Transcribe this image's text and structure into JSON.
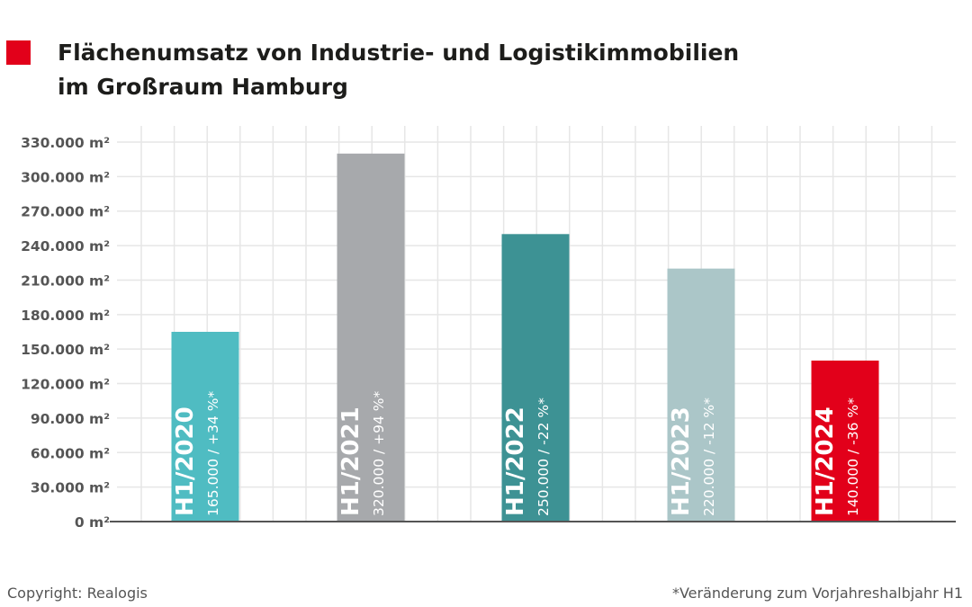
{
  "header": {
    "title_line1": "Flächenumsatz von Industrie- und Logistikimmobilien",
    "title_line2": "im Großraum Hamburg",
    "marker_color": "#e2001a"
  },
  "footer": {
    "copyright": "Copyright: Realogis",
    "note": "*Veränderung zum Vorjahreshalbjahr H1"
  },
  "chart_data": {
    "type": "bar",
    "title": "Flächenumsatz von Industrie- und Logistikimmobilien im Großraum Hamburg",
    "ylabel": "",
    "xlabel": "",
    "ylim": [
      0,
      330000
    ],
    "grid": true,
    "yticks": [
      {
        "value": 330000,
        "label": "330.000 m²"
      },
      {
        "value": 300000,
        "label": "300.000 m²"
      },
      {
        "value": 270000,
        "label": "270.000 m²"
      },
      {
        "value": 240000,
        "label": "240.000 m²"
      },
      {
        "value": 210000,
        "label": "210.000 m²"
      },
      {
        "value": 180000,
        "label": "180.000 m²"
      },
      {
        "value": 150000,
        "label": "150.000 m²"
      },
      {
        "value": 120000,
        "label": "120.000 m²"
      },
      {
        "value": 90000,
        "label": "90.000 m²"
      },
      {
        "value": 60000,
        "label": "60.000 m²"
      },
      {
        "value": 30000,
        "label": "30.000 m²"
      },
      {
        "value": 0,
        "label": "0 m²"
      }
    ],
    "categories": [
      "H1/2020",
      "H1/2021",
      "H1/2022",
      "H1/2023",
      "H1/2024"
    ],
    "bars": [
      {
        "category": "H1/2020",
        "value": 165000,
        "color": "#4fbcc2",
        "label": "H1/2020",
        "sublabel": "165.000 / +34 %*"
      },
      {
        "category": "H1/2021",
        "value": 320000,
        "color": "#a7a9ac",
        "label": "H1/2021",
        "sublabel": "320.000 / +94 %*"
      },
      {
        "category": "H1/2022",
        "value": 250000,
        "color": "#3d9294",
        "label": "H1/2022",
        "sublabel": "250.000 / -22 %*"
      },
      {
        "category": "H1/2023",
        "value": 220000,
        "color": "#abc6c8",
        "label": "H1/2023",
        "sublabel": "220.000 / -12 %*"
      },
      {
        "category": "H1/2024",
        "value": 140000,
        "color": "#e2001a",
        "label": "H1/2024",
        "sublabel": "140.000 / -36 %*"
      }
    ]
  }
}
